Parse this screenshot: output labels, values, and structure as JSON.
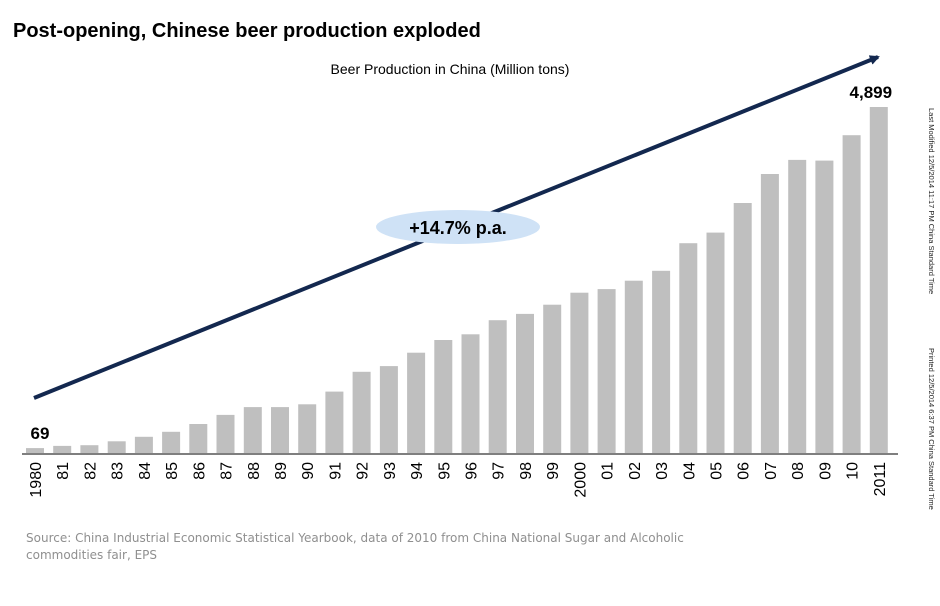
{
  "page": {
    "title": "Post-opening, Chinese beer production exploded",
    "source": "Source: China Industrial Economic Statistical  Yearbook, data of 2010  from China National Sugar and Alcoholic commodities fair, EPS",
    "side_note_1": "Last Modified  12/5/2014  11:17  PM China Standard  Time",
    "side_note_2": "Printed  12/5/2014  6:37  PM China Standard  Time"
  },
  "colors": {
    "bar": "#bfbfbf",
    "arrow": "#13284f",
    "bubble": "#cfe2f6",
    "axis": "#7f7f7f"
  },
  "chart_data": {
    "type": "bar",
    "title": "Beer Production in China (Million tons)",
    "categories": [
      "1980",
      "81",
      "82",
      "83",
      "84",
      "85",
      "86",
      "87",
      "88",
      "89",
      "90",
      "91",
      "92",
      "93",
      "94",
      "95",
      "96",
      "97",
      "98",
      "99",
      "2000",
      "01",
      "02",
      "03",
      "04",
      "05",
      "06",
      "07",
      "08",
      "09",
      "10",
      "2011"
    ],
    "values": [
      69,
      100,
      110,
      165,
      230,
      300,
      410,
      540,
      650,
      650,
      690,
      870,
      1150,
      1230,
      1420,
      1600,
      1680,
      1880,
      1970,
      2100,
      2270,
      2320,
      2440,
      2580,
      2970,
      3120,
      3540,
      3950,
      4150,
      4140,
      4500,
      4899
    ],
    "ylim": [
      0,
      4899
    ],
    "grid": false,
    "value_labels": [
      {
        "category": "1980",
        "text": "69"
      },
      {
        "category": "2011",
        "text": "4,899"
      }
    ],
    "annotation": {
      "text": "+14.7% p.a.",
      "type": "growth-arrow"
    }
  }
}
